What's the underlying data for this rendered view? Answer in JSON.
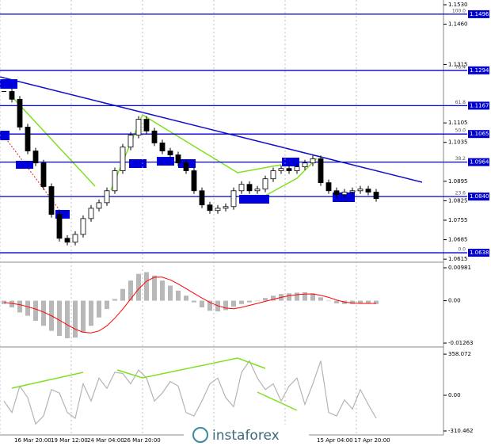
{
  "chart_data": {
    "type": "candlestick",
    "closes": [
      1.1218,
      1.119,
      1.109,
      1.1004,
      1.0961,
      1.0876,
      1.0776,
      1.069,
      1.0676,
      1.0704,
      1.0761,
      1.0798,
      1.0818,
      1.0861,
      1.0933,
      1.1018,
      1.1061,
      1.1118,
      1.1076,
      1.1033,
      1.1004,
      1.099,
      1.0961,
      1.0933,
      1.0861,
      1.081,
      1.079,
      1.0798,
      1.0804,
      1.0861,
      1.0884,
      1.0861,
      1.0867,
      1.0904,
      1.0933,
      1.0941,
      1.0933,
      1.0947,
      1.0961,
      1.0976,
      1.089,
      1.0861,
      1.0847,
      1.0856,
      1.0861,
      1.0867,
      1.0856,
      1.0833
    ],
    "ylim": [
      1.0604,
      1.1547
    ],
    "yticks": [
      {
        "value": 1.153,
        "label": "1.1530"
      },
      {
        "value": 1.146,
        "label": "1.1460"
      },
      {
        "value": 1.1315,
        "label": "1.1315"
      },
      {
        "value": 1.1105,
        "label": "1.1105"
      },
      {
        "value": 1.1035,
        "label": "1.1035"
      },
      {
        "value": 1.0895,
        "label": "1.0895"
      },
      {
        "value": 1.0825,
        "label": "1.0825"
      },
      {
        "value": 1.0755,
        "label": "1.0755"
      },
      {
        "value": 1.0685,
        "label": "1.0685"
      },
      {
        "value": 1.0615,
        "label": "1.0615"
      }
    ],
    "fib_levels": {
      "names": [
        "100.0",
        "76.4",
        "61.8",
        "50.0",
        "38.2",
        "23.6",
        "0.0"
      ],
      "values": [
        1.1496,
        1.1294,
        1.1167,
        1.1065,
        1.0964,
        1.084,
        1.0638
      ],
      "value_labels": [
        "1.1496",
        "1.1294",
        "1.1167",
        "1.1065",
        "1.0964",
        "1.0840",
        "1.0638"
      ],
      "color": "#0000cc"
    },
    "x_labels": [
      "16 Mar 20:00",
      "19 Mar 12:00",
      "24 Mar 04:00",
      "26 Mar 20:00",
      "15 Apr 04:00",
      "17 Apr 20:00"
    ],
    "macd": {
      "type": "histogram",
      "histogram": [
        -0.001,
        -0.002,
        -0.0035,
        -0.0045,
        -0.006,
        -0.0075,
        -0.009,
        -0.0105,
        -0.0112,
        -0.011,
        -0.0095,
        -0.0075,
        -0.005,
        -0.0025,
        0.0005,
        0.0035,
        0.006,
        0.008,
        0.0085,
        0.0075,
        0.006,
        0.0045,
        0.003,
        0.0015,
        -0.0005,
        -0.002,
        -0.003,
        -0.0032,
        -0.0028,
        -0.0018,
        -0.001,
        -0.0005,
        0,
        0.0008,
        0.0015,
        0.002,
        0.0022,
        0.0024,
        0.0025,
        0.0022,
        0.001,
        0,
        -0.0008,
        -0.001,
        -0.001,
        -0.0009,
        -0.0009,
        -0.001
      ],
      "signal": [
        -0.0005,
        -0.0008,
        -0.0012,
        -0.0018,
        -0.0025,
        -0.0034,
        -0.0045,
        -0.0058,
        -0.0072,
        -0.0085,
        -0.0094,
        -0.0096,
        -0.009,
        -0.0075,
        -0.0052,
        -0.0025,
        0.0005,
        0.0035,
        0.0058,
        0.007,
        0.007,
        0.0062,
        0.005,
        0.0036,
        0.0022,
        0.0008,
        -0.0005,
        -0.0015,
        -0.0022,
        -0.0024,
        -0.002,
        -0.0014,
        -0.0008,
        -0.0002,
        0.0004,
        0.001,
        0.0015,
        0.0018,
        0.002,
        0.002,
        0.0016,
        0.001,
        0.0002,
        -0.0004,
        -0.0007,
        -0.0008,
        -0.0008,
        -0.0008
      ],
      "color": "#b8b8b8",
      "signal_color": "#ff0000",
      "ylim": [
        -0.0138,
        0.011
      ],
      "yticks": [
        0.00981,
        {
          "value": 0,
          "label": "0.00"
        },
        -0.01263
      ]
    },
    "cci": {
      "type": "line",
      "values": [
        -50,
        -150,
        80,
        -20,
        -250,
        -180,
        50,
        20,
        -150,
        -200,
        100,
        -50,
        150,
        60,
        200,
        190,
        100,
        220,
        150,
        -50,
        20,
        120,
        80,
        -150,
        -180,
        -50,
        100,
        150,
        -20,
        -100,
        200,
        300,
        150,
        50,
        100,
        -50,
        80,
        150,
        -80,
        100,
        300,
        -150,
        -180,
        -40,
        -120,
        50,
        -80,
        -200
      ],
      "color": "#b4b4b4",
      "ylim": [
        -345,
        407
      ],
      "yticks": [
        358.072,
        {
          "value": 0,
          "label": "0.00"
        },
        -310.462
      ]
    },
    "watermark": "instaforex"
  }
}
